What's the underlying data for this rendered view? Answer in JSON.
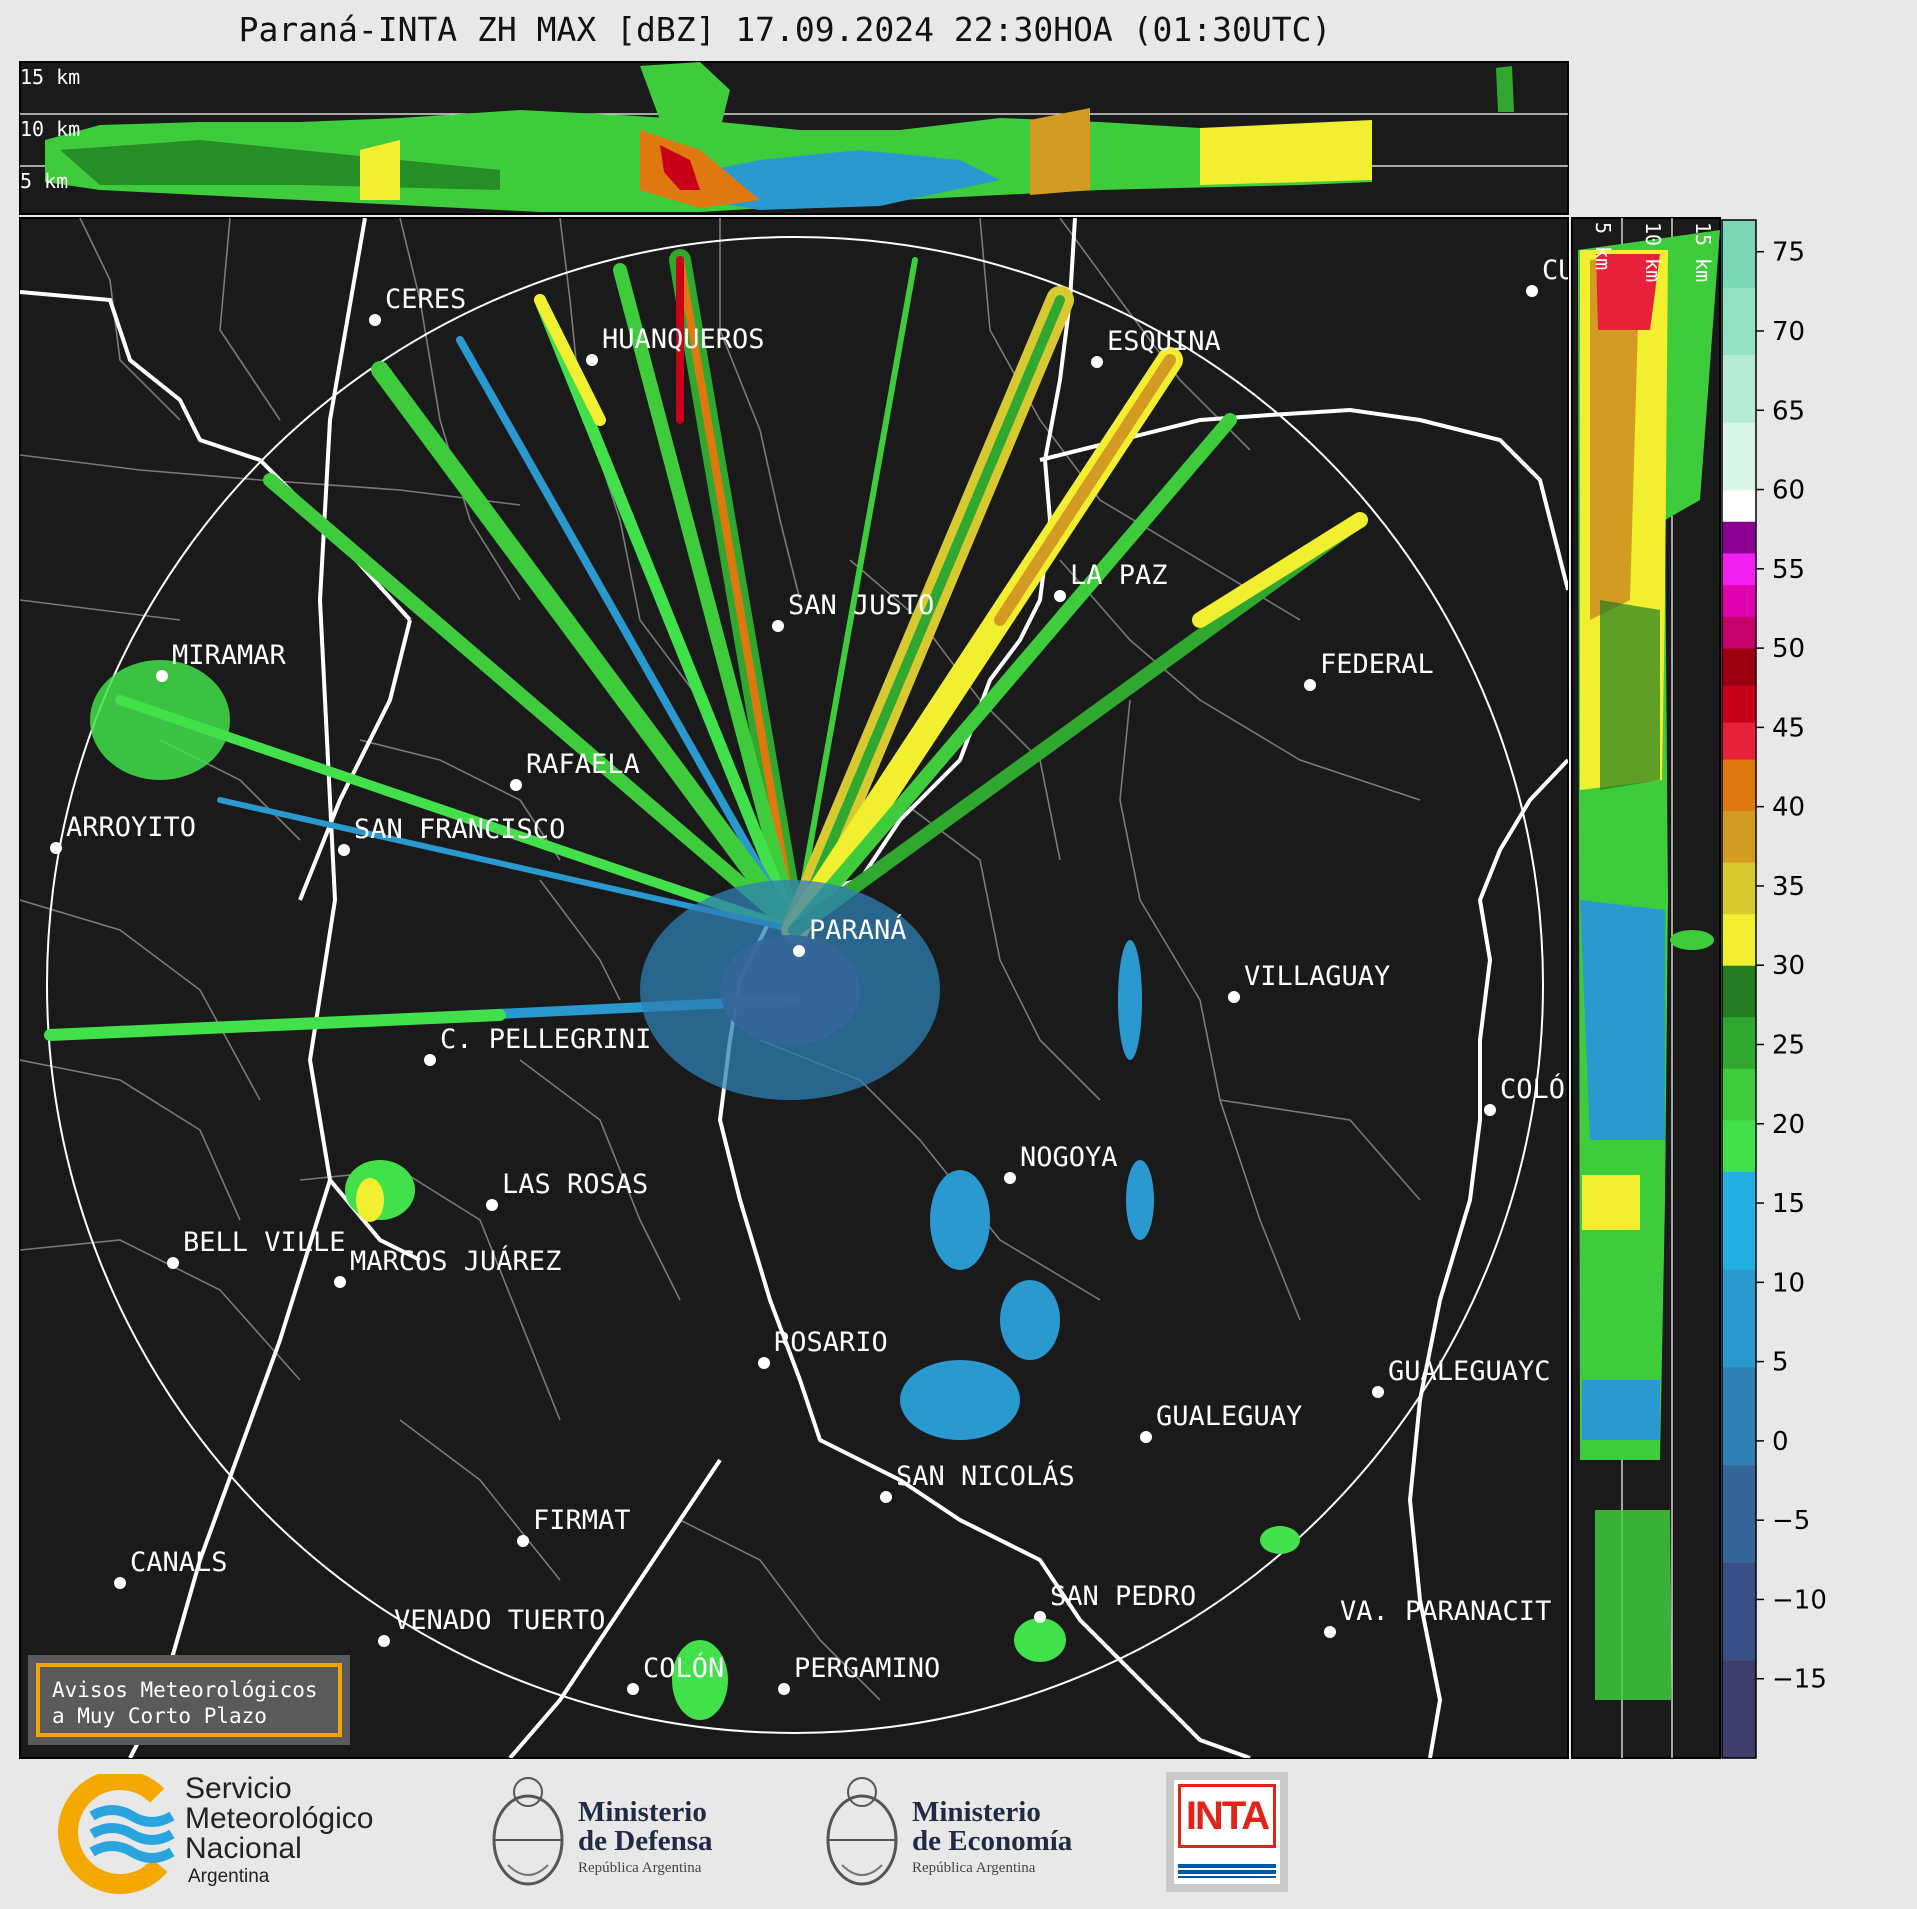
{
  "title": "Paraná-INTA ZH MAX [dBZ] 17.09.2024 22:30HOA (01:30UTC)",
  "top_panel": {
    "height_labels": [
      "15 km",
      "10 km",
      "5 km"
    ]
  },
  "side_panel": {
    "height_labels": [
      "5 km",
      "10 km",
      "15 km"
    ]
  },
  "colorbar": {
    "min": -20,
    "max": 77,
    "ticks": [
      "75",
      "70",
      "65",
      "60",
      "55",
      "50",
      "45",
      "40",
      "35",
      "30",
      "25",
      "20",
      "15",
      "10",
      "5",
      "0",
      "−5",
      "−10",
      "−15"
    ],
    "tick_values": [
      75,
      70,
      65,
      60,
      55,
      50,
      45,
      40,
      35,
      30,
      25,
      20,
      15,
      10,
      5,
      0,
      -5,
      -10,
      -15
    ],
    "bands": [
      {
        "from": -20,
        "to": 17,
        "colors": [
          "#3d3d6b",
          "#3a4f86",
          "#356699",
          "#2f80b4",
          "#2a99cf",
          "#24b0e2"
        ]
      },
      {
        "from": 17,
        "to": 30,
        "colors": [
          "#42e04a",
          "#3ecc3c",
          "#30a830",
          "#227d22"
        ]
      },
      {
        "from": 30,
        "to": 43,
        "colors": [
          "#f2ee30",
          "#d8c930",
          "#d49b22",
          "#e07810"
        ]
      },
      {
        "from": 43,
        "to": 50,
        "colors": [
          "#e8213a",
          "#c8001a",
          "#9a0010"
        ]
      },
      {
        "from": 50,
        "to": 58,
        "colors": [
          "#c6006a",
          "#e000b0",
          "#f020f0",
          "#8a0090"
        ]
      },
      {
        "from": 58,
        "to": 60,
        "colors": [
          "#ffffff"
        ]
      },
      {
        "from": 60,
        "to": 77,
        "colors": [
          "#d8f5e8",
          "#b6ecd6",
          "#94e2c4",
          "#7ad8b6"
        ]
      }
    ]
  },
  "radar": {
    "center_city": "PARANÁ",
    "range_ring": "white"
  },
  "cities": [
    {
      "name": "CERES"
    },
    {
      "name": "HUANQUEROS"
    },
    {
      "name": "ESQUINA"
    },
    {
      "name": "CU"
    },
    {
      "name": "SAN JUSTO"
    },
    {
      "name": "LA PAZ"
    },
    {
      "name": "MIRAMAR"
    },
    {
      "name": "FEDERAL"
    },
    {
      "name": "RAFAELA"
    },
    {
      "name": "ARROYITO"
    },
    {
      "name": "SAN FRANCISCO"
    },
    {
      "name": "PARANÁ"
    },
    {
      "name": "VILLAGUAY"
    },
    {
      "name": "C. PELLEGRINI"
    },
    {
      "name": "COLÓ"
    },
    {
      "name": "NOGOYA"
    },
    {
      "name": "LAS ROSAS"
    },
    {
      "name": "BELL VILLE"
    },
    {
      "name": "MARCOS JUÁREZ"
    },
    {
      "name": "ROSARIO"
    },
    {
      "name": "GUALEGUAYC"
    },
    {
      "name": "GUALEGUAY"
    },
    {
      "name": "SAN NICOLÁS"
    },
    {
      "name": "FIRMAT"
    },
    {
      "name": "CANALS"
    },
    {
      "name": "SAN PEDRO"
    },
    {
      "name": "VENADO TUERTO"
    },
    {
      "name": "VA. PARANACIT"
    },
    {
      "name": "COLÓN"
    },
    {
      "name": "PERGAMINO"
    }
  ],
  "warning": {
    "line1": "Avisos Meteorológicos",
    "line2": "a Muy Corto Plazo"
  },
  "logos": {
    "smn": {
      "line1": "Servicio",
      "line2": "Meteorológico",
      "line3": "Nacional",
      "country": "Argentina",
      "colors": [
        "#f5a900",
        "#2aa4dc"
      ]
    },
    "defensa": {
      "line1": "Ministerio",
      "line2": "de Defensa",
      "sub": "República Argentina"
    },
    "economia": {
      "line1": "Ministerio",
      "line2": "de Economía",
      "sub": "República Argentina"
    },
    "inta": {
      "text": "INTA",
      "colors": [
        "#e2231a",
        "#0057a8"
      ]
    }
  }
}
